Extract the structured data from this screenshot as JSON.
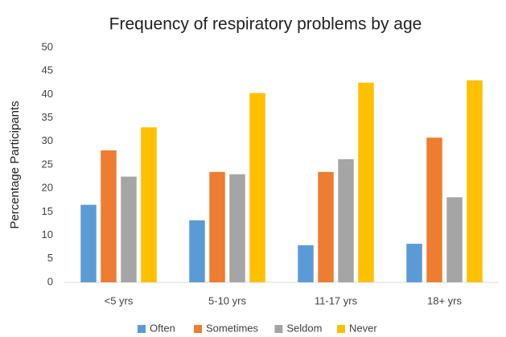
{
  "chart_data": {
    "type": "bar",
    "title": "Frequency of respiratory problems by age",
    "y_label": "Percentage Participants",
    "categories": [
      "<5 yrs",
      "5-10 yrs",
      "11-17 yrs",
      "18+ yrs"
    ],
    "series": [
      {
        "name": "Often",
        "color": "#5b9bd5",
        "values": [
          16.5,
          13.2,
          7.9,
          8.2
        ]
      },
      {
        "name": "Sometimes",
        "color": "#ed7d31",
        "values": [
          28.1,
          23.5,
          23.5,
          30.8
        ]
      },
      {
        "name": "Seldom",
        "color": "#a5a5a5",
        "values": [
          22.5,
          23,
          26.2,
          18.1
        ]
      },
      {
        "name": "Never",
        "color": "#ffc000",
        "values": [
          33,
          40.3,
          42.5,
          43
        ]
      }
    ],
    "ylim": [
      0,
      50
    ],
    "yticks": [
      0,
      5,
      10,
      15,
      20,
      25,
      30,
      35,
      40,
      45,
      50
    ],
    "grid": false,
    "legend": "bottom"
  }
}
